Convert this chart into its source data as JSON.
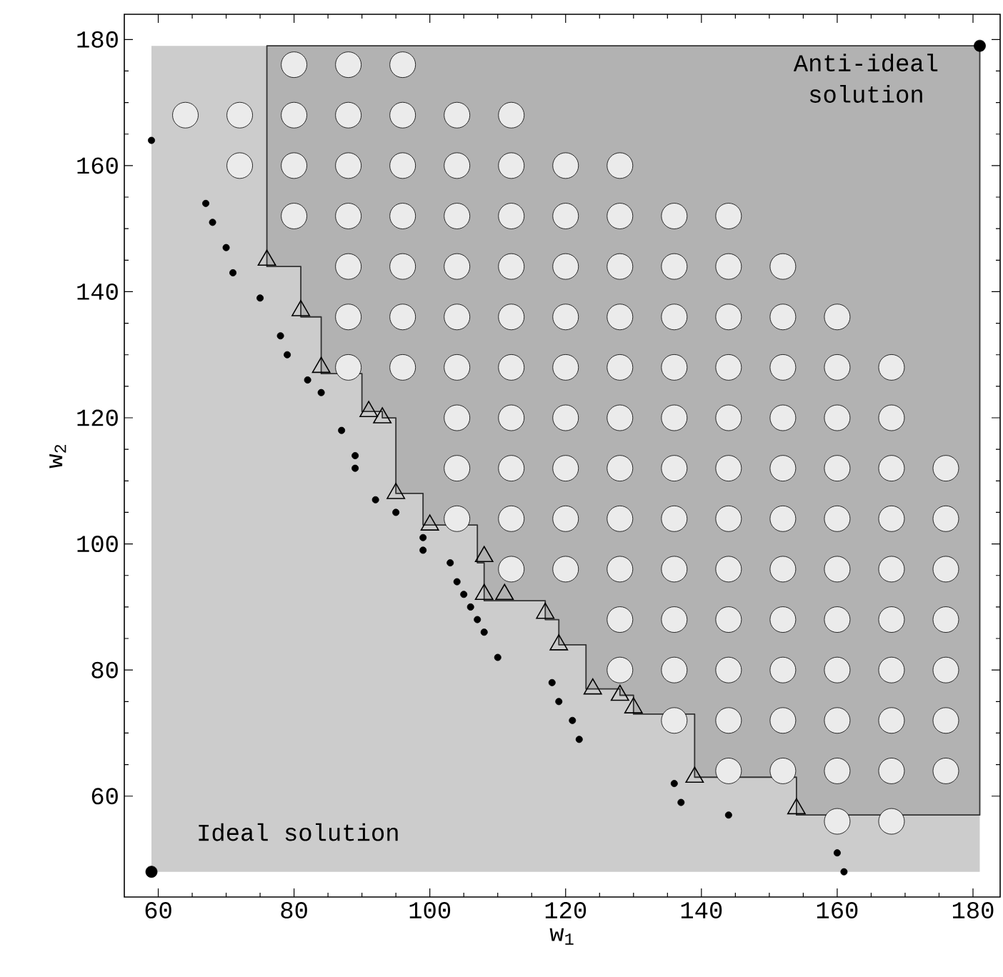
{
  "chart_data": {
    "type": "scatter",
    "xlabel": "w$_{1}$",
    "ylabel": "w$_{2}$",
    "xlim": [
      55,
      184
    ],
    "ylim": [
      44,
      184
    ],
    "xticks": [
      60,
      80,
      100,
      120,
      140,
      160,
      180
    ],
    "yticks": [
      60,
      80,
      100,
      120,
      140,
      160,
      180
    ],
    "grid": false,
    "series": [
      {
        "color": "#ebebeb",
        "marker": "circle",
        "x": [
          64,
          72,
          72,
          80,
          80,
          80,
          80,
          88,
          88,
          88,
          88,
          88,
          88,
          88,
          96,
          96,
          96,
          96,
          96,
          96,
          96,
          104,
          104,
          104,
          104,
          104,
          104,
          104,
          104,
          104,
          112,
          112,
          112,
          112,
          112,
          112,
          112,
          112,
          112,
          112,
          120,
          120,
          120,
          120,
          120,
          120,
          120,
          120,
          120,
          128,
          128,
          128,
          128,
          128,
          128,
          128,
          128,
          128,
          128,
          128,
          136,
          136,
          136,
          136,
          136,
          136,
          136,
          136,
          136,
          136,
          136,
          144,
          144,
          144,
          144,
          144,
          144,
          144,
          144,
          144,
          144,
          144,
          144,
          152,
          152,
          152,
          152,
          152,
          152,
          152,
          152,
          152,
          152,
          152,
          160,
          160,
          160,
          160,
          160,
          160,
          160,
          160,
          160,
          160,
          160,
          168,
          168,
          168,
          168,
          168,
          168,
          168,
          168,
          168,
          168,
          176,
          176,
          176,
          176,
          176,
          176,
          176
        ],
        "values": [
          168,
          160,
          168,
          152,
          160,
          168,
          176,
          128,
          136,
          144,
          152,
          160,
          168,
          176,
          128,
          136,
          144,
          152,
          160,
          168,
          176,
          104,
          112,
          120,
          128,
          136,
          144,
          152,
          160,
          168,
          96,
          104,
          112,
          120,
          128,
          136,
          144,
          152,
          160,
          168,
          96,
          104,
          112,
          120,
          128,
          136,
          144,
          152,
          160,
          80,
          88,
          96,
          104,
          112,
          120,
          128,
          136,
          144,
          152,
          160,
          72,
          80,
          88,
          96,
          104,
          112,
          120,
          128,
          136,
          144,
          152,
          64,
          72,
          80,
          88,
          96,
          104,
          112,
          120,
          128,
          136,
          144,
          152,
          64,
          72,
          80,
          88,
          96,
          104,
          112,
          120,
          128,
          136,
          144,
          56,
          64,
          72,
          80,
          88,
          96,
          104,
          112,
          120,
          128,
          136,
          56,
          64,
          72,
          80,
          88,
          96,
          104,
          112,
          120,
          128,
          64,
          72,
          80,
          88,
          96,
          104,
          112
        ]
      },
      {
        "type": "area",
        "color": "#b2b2b2",
        "x": [
          76,
          76,
          81,
          81,
          84,
          84,
          90,
          90,
          93,
          93,
          95,
          95,
          99,
          99,
          107,
          107,
          108,
          108,
          117,
          117,
          119,
          119,
          123,
          123,
          128,
          128,
          130,
          130,
          139,
          139,
          154,
          154,
          181,
          181,
          76
        ],
        "values": [
          179,
          144,
          144,
          136,
          136,
          127,
          127,
          121,
          121,
          120,
          120,
          108,
          108,
          103,
          103,
          97,
          97,
          91,
          91,
          88,
          88,
          84,
          84,
          77,
          77,
          76,
          76,
          73,
          73,
          63,
          63,
          57,
          57,
          179,
          179
        ]
      },
      {
        "color": "#000000",
        "marker": "triangle",
        "x": [
          76,
          81,
          84,
          91,
          93,
          95,
          100,
          108,
          108,
          111,
          117,
          119,
          124,
          128,
          130,
          139,
          154
        ],
        "values": [
          145,
          137,
          128,
          121,
          120,
          108,
          103,
          98,
          92,
          92,
          89,
          84,
          77,
          76,
          74,
          63,
          58
        ]
      },
      {
        "color": "#000000",
        "marker": "circle",
        "x": [
          59,
          67,
          68,
          70,
          71,
          75,
          78,
          79,
          82,
          84,
          87,
          89,
          89,
          92,
          95,
          99,
          99,
          103,
          104,
          105,
          106,
          107,
          108,
          110,
          118,
          119,
          121,
          122,
          136,
          137,
          144,
          160,
          161
        ],
        "values": [
          164,
          154,
          151,
          147,
          143,
          139,
          133,
          130,
          126,
          124,
          118,
          114,
          112,
          107,
          105,
          101,
          99,
          97,
          94,
          92,
          90,
          88,
          86,
          82,
          78,
          75,
          72,
          69,
          62,
          59,
          57,
          51,
          48
        ]
      },
      {
        "type": "bubble",
        "color": "#000000",
        "marker": "circle",
        "x": [
          59,
          181
        ],
        "values": [
          48,
          179
        ],
        "sizes": [
          1,
          1
        ]
      }
    ],
    "annotations": [
      {
        "text": "Ideal solution",
        "x": 59,
        "y": 48
      },
      {
        "text": "Anti-ideal solution",
        "x": 181,
        "y": 179
      }
    ]
  }
}
